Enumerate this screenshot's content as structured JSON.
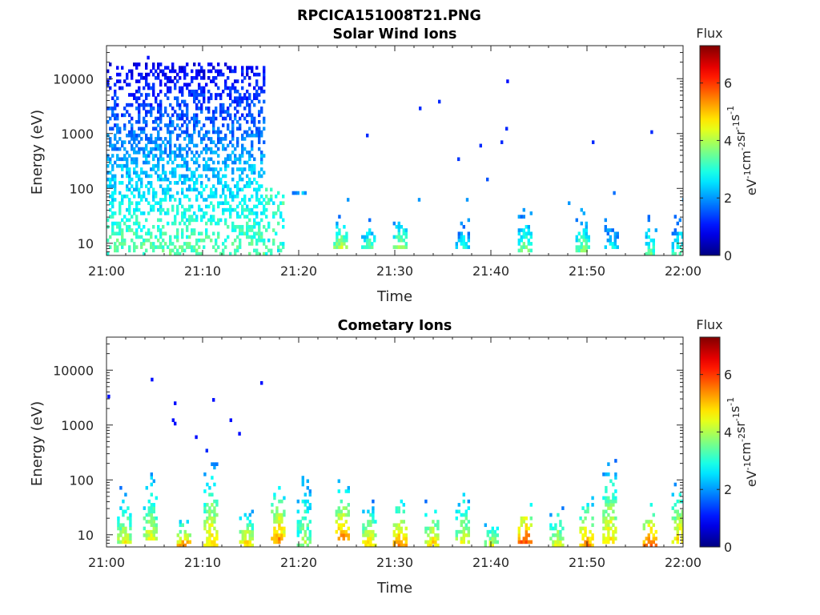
{
  "figure_title": "RPCICA151008T21.PNG",
  "chart_data": [
    {
      "type": "heatmap",
      "title": "Solar Wind Ions",
      "xlabel": "Time",
      "ylabel": "Energy (eV)",
      "x_ticks": [
        "21:00",
        "21:10",
        "21:20",
        "21:30",
        "21:40",
        "21:50",
        "22:00"
      ],
      "x_range_minutes": [
        0,
        60
      ],
      "y_scale": "log",
      "y_ticks": [
        10,
        100,
        1000,
        10000
      ],
      "y_tick_labels": [
        "10",
        "100",
        "1000",
        "10000"
      ],
      "y_range": [
        6,
        40000
      ],
      "colorbar": {
        "label": "Flux",
        "units": "eV-1cm-2sr-1s-1",
        "range": [
          0,
          7.3
        ],
        "ticks": [
          0,
          2,
          4,
          6
        ]
      },
      "regions": [
        {
          "t0": 0,
          "t1": 16.5,
          "e_min": 6,
          "e_max": 18000,
          "density": "high",
          "flux_profile": "higher energy = lower flux (~1 at 10 keV, ~3 at 10 eV)"
        },
        {
          "t0": 16.5,
          "t1": 18.5,
          "e_min": 6,
          "e_max": 100,
          "density": "medium",
          "flux_profile": "2-3.5"
        }
      ],
      "bursts": [
        {
          "t": 20.0,
          "e_min": 80,
          "e_max": 100,
          "flux": 2.5
        },
        {
          "t": 24.3,
          "e_min": 8,
          "e_max": 30,
          "flux": 4.2
        },
        {
          "t": 27.2,
          "e_min": 8,
          "e_max": 30,
          "flux": 3.5
        },
        {
          "t": 30.5,
          "e_min": 8,
          "e_max": 35,
          "flux": 4.0
        },
        {
          "t": 37.0,
          "e_min": 8,
          "e_max": 30,
          "flux": 3.0
        },
        {
          "t": 43.5,
          "e_min": 7,
          "e_max": 40,
          "flux": 3.8
        },
        {
          "t": 49.5,
          "e_min": 7,
          "e_max": 40,
          "flux": 3.8
        },
        {
          "t": 52.5,
          "e_min": 8,
          "e_max": 25,
          "flux": 3.0
        },
        {
          "t": 56.5,
          "e_min": 6,
          "e_max": 35,
          "flux": 3.5
        },
        {
          "t": 59.5,
          "e_min": 6,
          "e_max": 30,
          "flux": 3.5
        }
      ],
      "isolated_points": [
        {
          "t": 4.2,
          "e": 23000,
          "flux": 1
        },
        {
          "t": 27.0,
          "e": 900,
          "flux": 1.2
        },
        {
          "t": 32.5,
          "e": 3000,
          "flux": 1.2
        },
        {
          "t": 34.5,
          "e": 4000,
          "flux": 1.2
        },
        {
          "t": 36.5,
          "e": 330,
          "flux": 1.3
        },
        {
          "t": 38.8,
          "e": 600,
          "flux": 1.2
        },
        {
          "t": 39.5,
          "e": 140,
          "flux": 1.5
        },
        {
          "t": 41.0,
          "e": 700,
          "flux": 1.2
        },
        {
          "t": 41.5,
          "e": 1300,
          "flux": 1.2
        },
        {
          "t": 41.6,
          "e": 9000,
          "flux": 1.0
        },
        {
          "t": 50.5,
          "e": 700,
          "flux": 1.2
        },
        {
          "t": 52.7,
          "e": 85,
          "flux": 1.7
        },
        {
          "t": 56.6,
          "e": 1100,
          "flux": 1.2
        },
        {
          "t": 32.4,
          "e": 65,
          "flux": 2.0
        },
        {
          "t": 37.4,
          "e": 62,
          "flux": 2.0
        },
        {
          "t": 25.0,
          "e": 62,
          "flux": 2.0
        },
        {
          "t": 48.0,
          "e": 58,
          "flux": 2.0
        },
        {
          "t": 59.9,
          "e": 62,
          "flux": 2.0
        }
      ]
    },
    {
      "type": "heatmap",
      "title": "Cometary Ions",
      "xlabel": "Time",
      "ylabel": "Energy (eV)",
      "x_ticks": [
        "21:00",
        "21:10",
        "21:20",
        "21:30",
        "21:40",
        "21:50",
        "22:00"
      ],
      "x_range_minutes": [
        0,
        60
      ],
      "y_scale": "log",
      "y_ticks": [
        10,
        100,
        1000,
        10000
      ],
      "y_tick_labels": [
        "10",
        "100",
        "1000",
        "10000"
      ],
      "y_range": [
        6,
        40000
      ],
      "colorbar": {
        "label": "Flux",
        "units": "eV-1cm-2sr-1s-1",
        "range": [
          0,
          7.3
        ],
        "ticks": [
          0,
          2,
          4,
          6
        ]
      },
      "bursts": [
        {
          "t": 1.8,
          "e_min": 7,
          "e_max": 70,
          "flux": 4.5
        },
        {
          "t": 4.5,
          "e_min": 9,
          "e_max": 150,
          "flux": 4.5
        },
        {
          "t": 8.0,
          "e_min": 6,
          "e_max": 20,
          "flux": 5.5
        },
        {
          "t": 10.8,
          "e_min": 6,
          "e_max": 200,
          "flux": 5.0
        },
        {
          "t": 14.5,
          "e_min": 6,
          "e_max": 30,
          "flux": 5.0
        },
        {
          "t": 17.8,
          "e_min": 7,
          "e_max": 90,
          "flux": 5.5
        },
        {
          "t": 20.5,
          "e_min": 6,
          "e_max": 180,
          "flux": 4.0
        },
        {
          "t": 24.5,
          "e_min": 8,
          "e_max": 90,
          "flux": 5.5
        },
        {
          "t": 27.3,
          "e_min": 6,
          "e_max": 40,
          "flux": 5.0
        },
        {
          "t": 30.5,
          "e_min": 6,
          "e_max": 50,
          "flux": 5.5
        },
        {
          "t": 33.8,
          "e_min": 6,
          "e_max": 45,
          "flux": 5.0
        },
        {
          "t": 37.0,
          "e_min": 7,
          "e_max": 80,
          "flux": 4.5
        },
        {
          "t": 40.0,
          "e_min": 6,
          "e_max": 20,
          "flux": 4.5
        },
        {
          "t": 43.5,
          "e_min": 7,
          "e_max": 45,
          "flux": 6.0
        },
        {
          "t": 46.8,
          "e_min": 6,
          "e_max": 40,
          "flux": 4.5
        },
        {
          "t": 49.9,
          "e_min": 6,
          "e_max": 45,
          "flux": 5.5
        },
        {
          "t": 52.3,
          "e_min": 7,
          "e_max": 210,
          "flux": 5.0
        },
        {
          "t": 56.5,
          "e_min": 6,
          "e_max": 35,
          "flux": 6.0
        },
        {
          "t": 59.5,
          "e_min": 7,
          "e_max": 90,
          "flux": 5.0
        }
      ],
      "isolated_points": [
        {
          "t": 0.1,
          "e": 3300,
          "flux": 1
        },
        {
          "t": 4.6,
          "e": 6500,
          "flux": 1
        },
        {
          "t": 7.0,
          "e": 2400,
          "flux": 1
        },
        {
          "t": 6.8,
          "e": 1300,
          "flux": 1
        },
        {
          "t": 7.0,
          "e": 1100,
          "flux": 1
        },
        {
          "t": 11.0,
          "e": 2700,
          "flux": 1
        },
        {
          "t": 12.8,
          "e": 1300,
          "flux": 1
        },
        {
          "t": 13.7,
          "e": 700,
          "flux": 1
        },
        {
          "t": 16.0,
          "e": 5700,
          "flux": 1
        },
        {
          "t": 9.2,
          "e": 640,
          "flux": 1
        },
        {
          "t": 10.3,
          "e": 350,
          "flux": 1.2
        }
      ]
    }
  ]
}
